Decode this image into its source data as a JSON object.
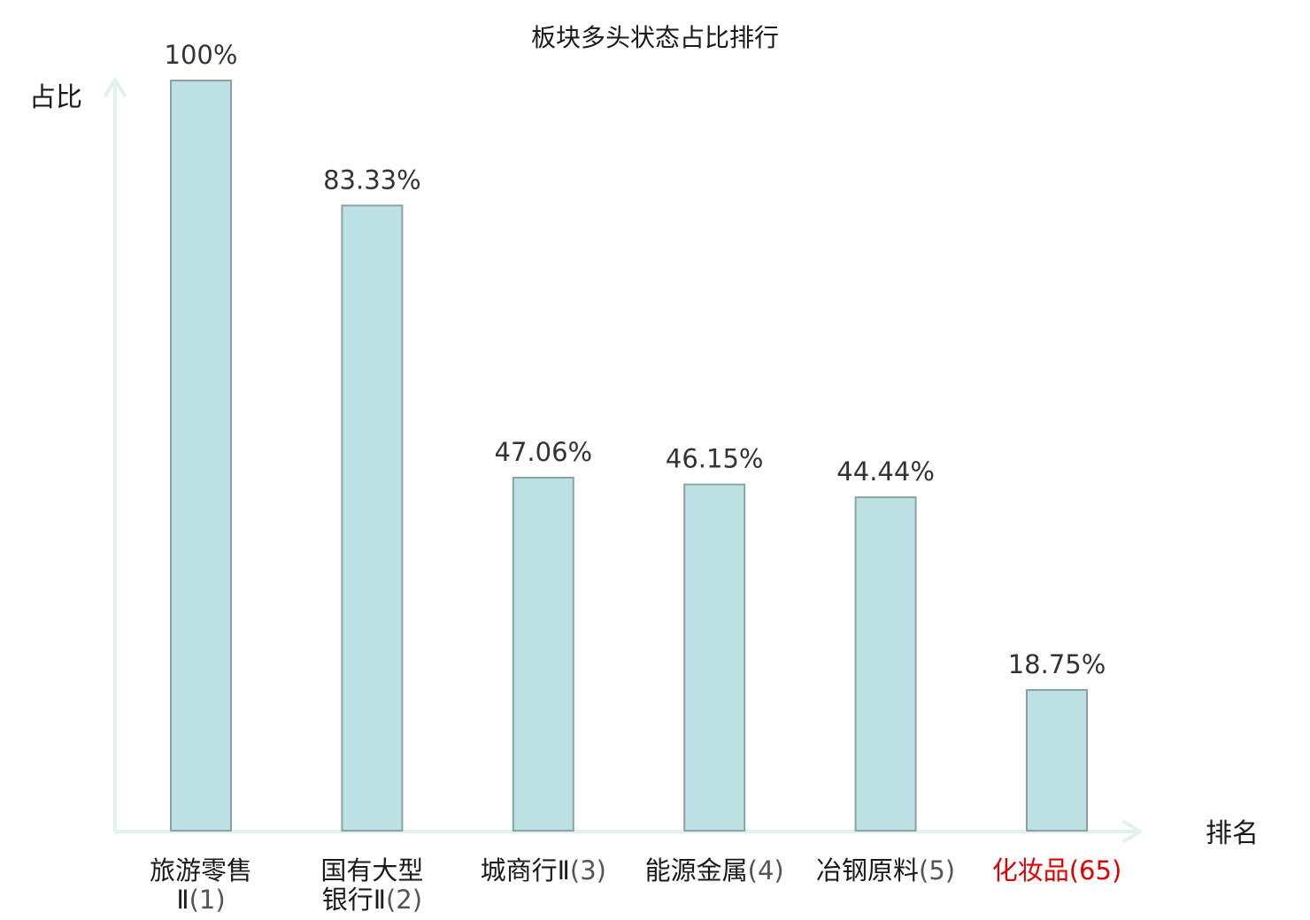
{
  "chart_data": {
    "type": "bar",
    "title": "板块多头状态占比排行",
    "ylabel": "占比",
    "xlabel": "排名",
    "ylim": [
      0,
      100
    ],
    "grid": false,
    "categories": [
      {
        "name_lines": [
          "旅游零售",
          "Ⅱ"
        ],
        "rank": "(1)",
        "highlight": false
      },
      {
        "name_lines": [
          "国有大型",
          "银行Ⅱ"
        ],
        "rank": "(2)",
        "highlight": false
      },
      {
        "name_lines": [
          "城商行Ⅱ"
        ],
        "rank": "(3)",
        "highlight": false
      },
      {
        "name_lines": [
          "能源金属"
        ],
        "rank": "(4)",
        "highlight": false
      },
      {
        "name_lines": [
          "冶钢原料"
        ],
        "rank": "(5)",
        "highlight": false
      },
      {
        "name_lines": [
          "化妆品"
        ],
        "rank": "(65)",
        "highlight": true
      }
    ],
    "values": [
      100,
      83.33,
      47.06,
      46.15,
      44.44,
      18.75
    ],
    "value_labels": [
      "100%",
      "83.33%",
      "47.06%",
      "46.15%",
      "44.44%",
      "18.75%"
    ]
  },
  "colors": {
    "bar_fill": "#bde1e3",
    "bar_stroke": "#86a3a6",
    "axis": "#e0f1ee",
    "text": "#1a1a1a",
    "rank_text": "#555555",
    "highlight": "#e00000"
  }
}
